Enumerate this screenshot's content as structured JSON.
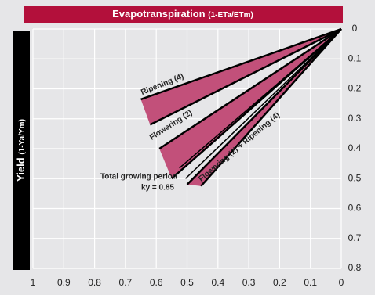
{
  "chart_data": {
    "type": "line",
    "xlabel": "Evapotranspiration",
    "xlabel_unit": "(1-ETa/ETm)",
    "ylabel": "Yield",
    "ylabel_unit": "(1-Ya/Ym)",
    "xlim": [
      1,
      0
    ],
    "xticks": [
      1,
      0.9,
      0.8,
      0.7,
      0.6,
      0.5,
      0.4,
      0.3,
      0.2,
      0.1,
      0
    ],
    "ylim": [
      0,
      0.8
    ],
    "yticks": [
      0,
      0.1,
      0.2,
      0.3,
      0.4,
      0.5,
      0.6,
      0.7,
      0.8
    ],
    "yinvert": true,
    "grid": true,
    "series": [
      {
        "name": "Ripening (4)",
        "color": "#c2507a",
        "fill": true,
        "lines": [
          {
            "x": [
              0,
              0.65
            ],
            "y": [
              0,
              0.235
            ]
          },
          {
            "x": [
              0,
              0.62
            ],
            "y": [
              0,
              0.32
            ]
          }
        ]
      },
      {
        "name": "Flowering (2)",
        "color": "#c2507a",
        "fill": true,
        "lines": [
          {
            "x": [
              0,
              0.59
            ],
            "y": [
              0,
              0.4
            ]
          },
          {
            "x": [
              0,
              0.55
            ],
            "y": [
              0,
              0.5
            ]
          }
        ]
      },
      {
        "name": "Total growing period",
        "annotation": "ky = 0.85",
        "color": "#000000",
        "fill": false,
        "lines": [
          {
            "x": [
              0,
              0.525
            ],
            "y": [
              0,
              0.465
            ]
          },
          {
            "x": [
              0,
              0.505
            ],
            "y": [
              0,
              0.5
            ]
          }
        ]
      },
      {
        "name": "Flowering (2) + Ripening (4)",
        "color": "#c2507a",
        "fill": true,
        "lines": [
          {
            "x": [
              0,
              0.5
            ],
            "y": [
              0,
              0.52
            ]
          },
          {
            "x": [
              0,
              0.455
            ],
            "y": [
              0,
              0.525
            ]
          }
        ]
      }
    ]
  }
}
